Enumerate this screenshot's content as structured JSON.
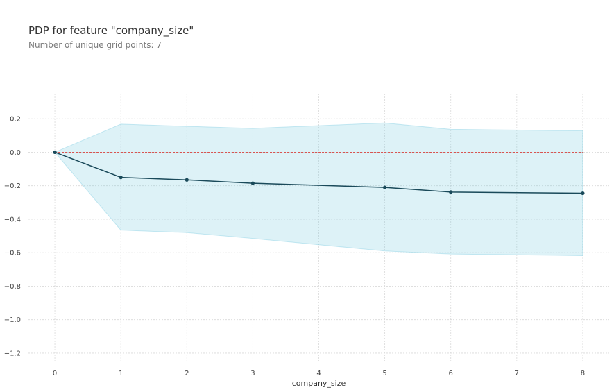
{
  "header": {
    "title": "PDP for feature \"company_size\"",
    "subtitle": "Number of unique grid points: 7"
  },
  "chart_data": {
    "type": "line",
    "title": "PDP for feature \"company_size\"",
    "subtitle": "Number of unique grid points: 7",
    "xlabel": "company_size",
    "ylabel": "",
    "x": [
      0,
      1,
      2,
      3,
      5,
      6,
      8
    ],
    "series": [
      {
        "values": [
          0.0,
          -0.15,
          -0.165,
          -0.185,
          -0.21,
          -0.238,
          -0.245
        ]
      }
    ],
    "band_upper": [
      0.0,
      0.168,
      0.155,
      0.143,
      0.175,
      0.137,
      0.128
    ],
    "band_lower": [
      0.0,
      -0.465,
      -0.48,
      -0.515,
      -0.59,
      -0.608,
      -0.618
    ],
    "reference_line": 0,
    "xticks": [
      0,
      1,
      2,
      3,
      4,
      5,
      6,
      7,
      8
    ],
    "yticks": [
      0.2,
      0.0,
      -0.2,
      -0.4,
      -0.6,
      -0.8,
      -1.0,
      -1.2
    ],
    "ytick_labels": [
      "0.2",
      "0.0",
      "−0.2",
      "−0.4",
      "−0.6",
      "−0.8",
      "−1.0",
      "−1.2"
    ],
    "xlim": [
      -0.4,
      8.4
    ],
    "ylim": [
      -1.25,
      0.35
    ],
    "grid": true,
    "colors": {
      "line": "#1a4a5a",
      "band": "#66c2dc",
      "reference": "#d9534f",
      "grid": "#d9d9d9"
    }
  }
}
